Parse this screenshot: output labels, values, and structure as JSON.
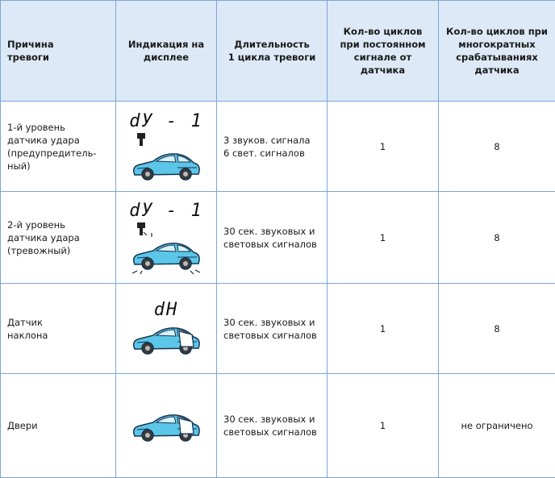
{
  "header": [
    [
      "Причина",
      "тревоги"
    ],
    [
      "Индикация на",
      "дисплее"
    ],
    [
      "Длительность",
      "1 цикла тревоги"
    ],
    [
      "Кол-во циклов",
      "при постоянном",
      "сигнале от",
      "датчика"
    ],
    [
      "Кол-во циклов при",
      "многократных",
      "срабатываниях",
      "датчика"
    ]
  ],
  "rows": [
    {
      "cause": [
        "1-й уровень",
        "датчика удара",
        "(предупредитель-",
        "ный)"
      ],
      "display": "dУ - 1",
      "duration": [
        "3 звуков. сигнала",
        "6 свет. сигналов"
      ],
      "constant": "1",
      "multiple": "8"
    },
    {
      "cause": [
        "2-й уровень",
        "датчика удара",
        "(тревожный)"
      ],
      "display": "dУ - 1",
      "duration": [
        "30 сек. звуковых и",
        "световых сигналов"
      ],
      "constant": "1",
      "multiple": "8"
    },
    {
      "cause": [
        "Датчик",
        "наклона"
      ],
      "display": "dH",
      "duration": [
        "30 сек. звуковых и",
        "световых сигналов"
      ],
      "constant": "1",
      "multiple": "8"
    },
    {
      "cause": [
        "Двери"
      ],
      "duration": [
        "30 сек. звуковых и",
        "световых сигналов"
      ],
      "constant": "1",
      "multiple": "не ограничено"
    }
  ]
}
